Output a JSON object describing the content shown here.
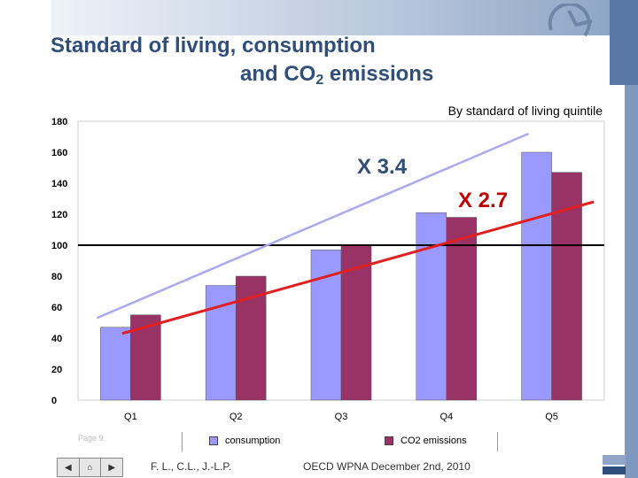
{
  "title": {
    "line1": "Standard of living, consumption",
    "line2_prefix": "and CO",
    "line2_sub": "2",
    "line2_suffix": " emissions"
  },
  "subtitle": "By standard of living quintile",
  "annotations": {
    "consumption_ratio": "X 3.4",
    "co2_ratio": "X 2.7"
  },
  "colors": {
    "title": "#2f4f7a",
    "consumption": "#9999ff",
    "co2": "#993366",
    "trend_consumption": "#a9a9f0",
    "trend_co2": "#e02020",
    "reference_line": "#000000"
  },
  "chart_data": {
    "type": "bar",
    "categories": [
      "Q1",
      "Q2",
      "Q3",
      "Q4",
      "Q5"
    ],
    "series": [
      {
        "name": "consumption",
        "values": [
          47,
          74,
          97,
          121,
          160
        ]
      },
      {
        "name": "CO2 emissions",
        "values": [
          55,
          80,
          100,
          118,
          147
        ]
      }
    ],
    "ylim": [
      0,
      180
    ],
    "yticks": [
      0,
      20,
      40,
      60,
      80,
      100,
      120,
      140,
      160,
      180
    ],
    "reference_value": 100,
    "trend_lines": [
      {
        "series": "consumption",
        "from": [
          "Q1",
          53
        ],
        "to": [
          "Q5",
          172
        ]
      },
      {
        "series": "CO2 emissions",
        "from": [
          "Q1",
          43
        ],
        "to": [
          "Q5",
          128
        ]
      }
    ],
    "grid": false,
    "legend": "bottom"
  },
  "footer": {
    "page": "Page 9",
    "author": "F. L., C.L., J.-L.P.",
    "event": "OECD WPNA December 2nd, 2010"
  },
  "nav": {
    "prev": "◀",
    "home": "⌂",
    "next": "▶"
  },
  "icons": [
    "corner-logo-icon",
    "insee-logo-icon",
    "prev-arrow-icon",
    "home-icon",
    "next-arrow-icon"
  ]
}
